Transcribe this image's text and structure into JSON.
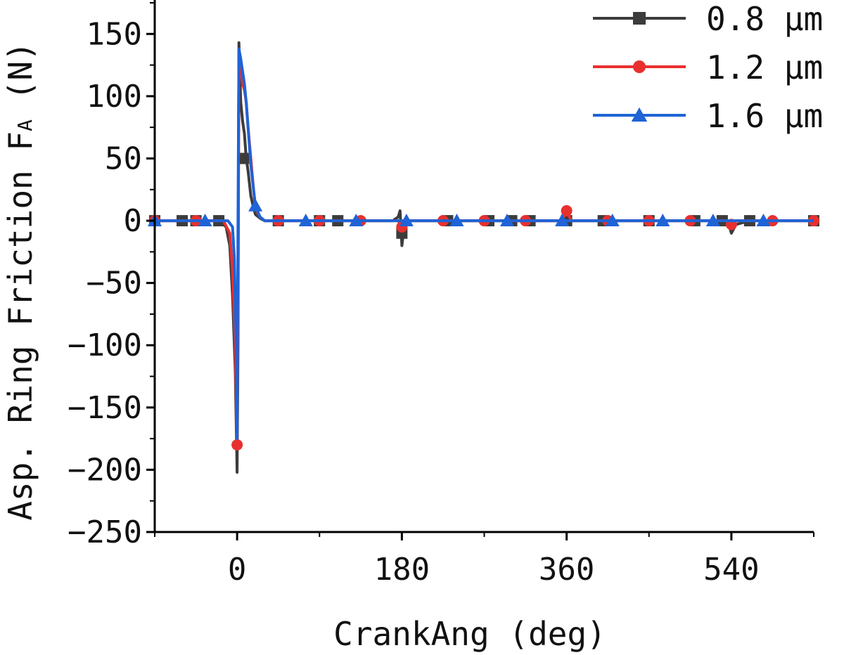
{
  "chart_data": {
    "type": "line",
    "xlabel": "CrankAng (deg)",
    "ylabel": "Asp. Ring Friction F",
    "ylabel_subscript": "A",
    "ylabel_unit": " (N)",
    "xlim": [
      -90,
      630
    ],
    "ylim": [
      -250,
      175
    ],
    "xticks": [
      0,
      180,
      360,
      540
    ],
    "yticks": [
      150,
      100,
      50,
      0,
      -50,
      -100,
      -150,
      -200,
      -250
    ],
    "legend_position": "top-right",
    "grid": false,
    "series": [
      {
        "name": "0.8 μm",
        "color": "#3c3c3c",
        "marker": "square",
        "x": [
          -90,
          -20,
          -12,
          -8,
          -5,
          -2,
          0,
          1,
          2,
          4,
          6,
          8,
          10,
          12,
          15,
          18,
          20,
          25,
          30,
          40,
          60,
          100,
          170,
          176,
          178,
          180,
          182,
          184,
          190,
          250,
          355,
          360,
          365,
          400,
          530,
          538,
          540,
          545,
          560,
          630
        ],
        "y": [
          0,
          0,
          -5,
          -20,
          -60,
          -120,
          -202,
          -100,
          143,
          95,
          80,
          70,
          50,
          40,
          20,
          10,
          5,
          2,
          0,
          0,
          0,
          0,
          0,
          3,
          8,
          -20,
          -8,
          0,
          0,
          0,
          0,
          0,
          0,
          0,
          0,
          -5,
          -10,
          -3,
          0,
          0
        ],
        "marker_x": [
          -90,
          -60,
          -45,
          -20,
          7,
          45,
          90,
          110,
          180,
          230,
          275,
          300,
          320,
          360,
          400,
          450,
          500,
          530,
          560,
          630
        ],
        "marker_y": [
          0,
          0,
          0,
          0,
          50,
          0,
          0,
          0,
          -10,
          0,
          0,
          0,
          0,
          0,
          0,
          0,
          0,
          0,
          0,
          0
        ]
      },
      {
        "name": "1.2 μm",
        "color": "#e8302f",
        "marker": "circle",
        "x": [
          -90,
          -15,
          -8,
          -5,
          -2,
          0,
          1,
          2,
          4,
          6,
          8,
          10,
          12,
          15,
          18,
          20,
          25,
          30,
          40,
          100,
          176,
          180,
          182,
          186,
          190,
          355,
          358,
          360,
          362,
          365,
          400,
          535,
          540,
          545,
          560,
          630
        ],
        "y": [
          0,
          0,
          -10,
          -40,
          -100,
          -180,
          -50,
          135,
          120,
          110,
          105,
          95,
          75,
          50,
          25,
          10,
          3,
          0,
          0,
          0,
          0,
          -5,
          -3,
          0,
          0,
          0,
          5,
          8,
          5,
          0,
          0,
          0,
          -3,
          0,
          0,
          0
        ],
        "marker_x": [
          -90,
          -45,
          0,
          45,
          90,
          135,
          180,
          225,
          270,
          315,
          360,
          405,
          450,
          495,
          540,
          585,
          630
        ],
        "marker_y": [
          0,
          0,
          -180,
          0,
          0,
          0,
          -5,
          0,
          0,
          0,
          8,
          0,
          0,
          0,
          -3,
          0,
          0
        ]
      },
      {
        "name": "1.6 μm",
        "color": "#1f63d6",
        "marker": "triangle",
        "x": [
          -90,
          -10,
          -5,
          -3,
          -1,
          0,
          1,
          2,
          4,
          6,
          8,
          10,
          12,
          15,
          18,
          20,
          25,
          30,
          40,
          100,
          630
        ],
        "y": [
          0,
          0,
          -5,
          -30,
          -100,
          -175,
          0,
          138,
          130,
          120,
          110,
          95,
          75,
          45,
          25,
          12,
          3,
          0,
          0,
          0,
          0
        ],
        "marker_x": [
          -90,
          -35,
          20,
          75,
          130,
          185,
          240,
          295,
          355,
          410,
          465,
          520,
          575
        ],
        "marker_y": [
          0,
          0,
          12,
          0,
          0,
          0,
          0,
          0,
          0,
          0,
          0,
          0,
          0
        ]
      }
    ]
  }
}
